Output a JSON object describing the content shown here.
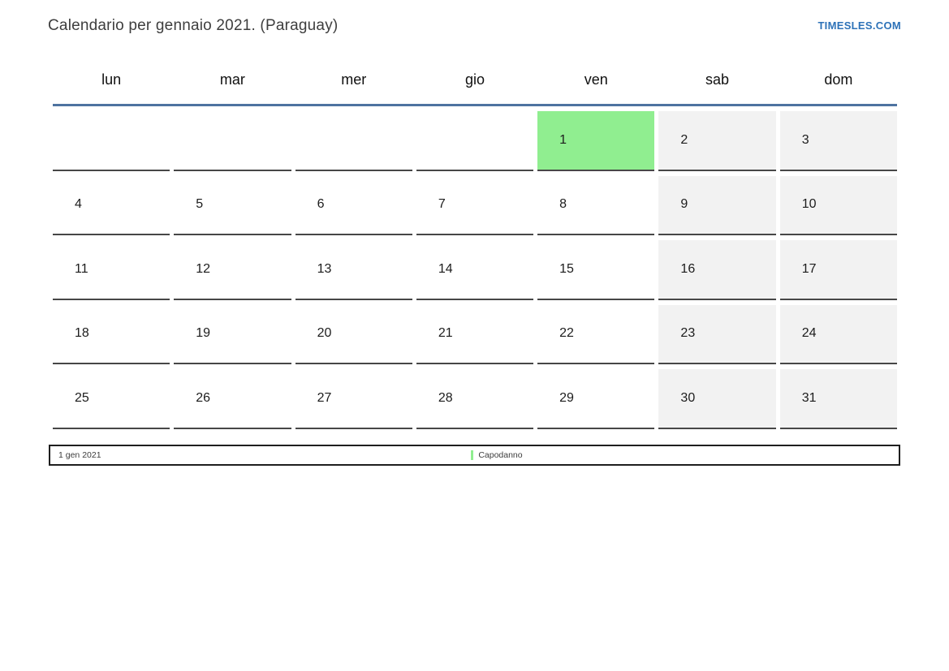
{
  "page": {
    "title": "Calendario per gennaio 2021. (Paraguay)",
    "brand": "TIMESLES.COM"
  },
  "colors": {
    "brand_color": "#2d72b8",
    "header_line": "#4e73a0",
    "holiday_bg": "#90ee90",
    "weekend_bg": "#f2f2f2"
  },
  "calendar": {
    "weekday_headers": [
      "lun",
      "mar",
      "mer",
      "gio",
      "ven",
      "sab",
      "dom"
    ],
    "weeks": [
      [
        {
          "day": "",
          "type": "empty"
        },
        {
          "day": "",
          "type": "empty"
        },
        {
          "day": "",
          "type": "empty"
        },
        {
          "day": "",
          "type": "empty"
        },
        {
          "day": "1",
          "type": "holiday"
        },
        {
          "day": "2",
          "type": "weekend"
        },
        {
          "day": "3",
          "type": "weekend"
        }
      ],
      [
        {
          "day": "4",
          "type": "normal"
        },
        {
          "day": "5",
          "type": "normal"
        },
        {
          "day": "6",
          "type": "normal"
        },
        {
          "day": "7",
          "type": "normal"
        },
        {
          "day": "8",
          "type": "normal"
        },
        {
          "day": "9",
          "type": "weekend"
        },
        {
          "day": "10",
          "type": "weekend"
        }
      ],
      [
        {
          "day": "11",
          "type": "normal"
        },
        {
          "day": "12",
          "type": "normal"
        },
        {
          "day": "13",
          "type": "normal"
        },
        {
          "day": "14",
          "type": "normal"
        },
        {
          "day": "15",
          "type": "normal"
        },
        {
          "day": "16",
          "type": "weekend"
        },
        {
          "day": "17",
          "type": "weekend"
        }
      ],
      [
        {
          "day": "18",
          "type": "normal"
        },
        {
          "day": "19",
          "type": "normal"
        },
        {
          "day": "20",
          "type": "normal"
        },
        {
          "day": "21",
          "type": "normal"
        },
        {
          "day": "22",
          "type": "normal"
        },
        {
          "day": "23",
          "type": "weekend"
        },
        {
          "day": "24",
          "type": "weekend"
        }
      ],
      [
        {
          "day": "25",
          "type": "normal"
        },
        {
          "day": "26",
          "type": "normal"
        },
        {
          "day": "27",
          "type": "normal"
        },
        {
          "day": "28",
          "type": "normal"
        },
        {
          "day": "29",
          "type": "normal"
        },
        {
          "day": "30",
          "type": "weekend"
        },
        {
          "day": "31",
          "type": "weekend"
        }
      ]
    ]
  },
  "legend": {
    "date": "1 gen 2021",
    "holiday_name": "Capodanno"
  }
}
